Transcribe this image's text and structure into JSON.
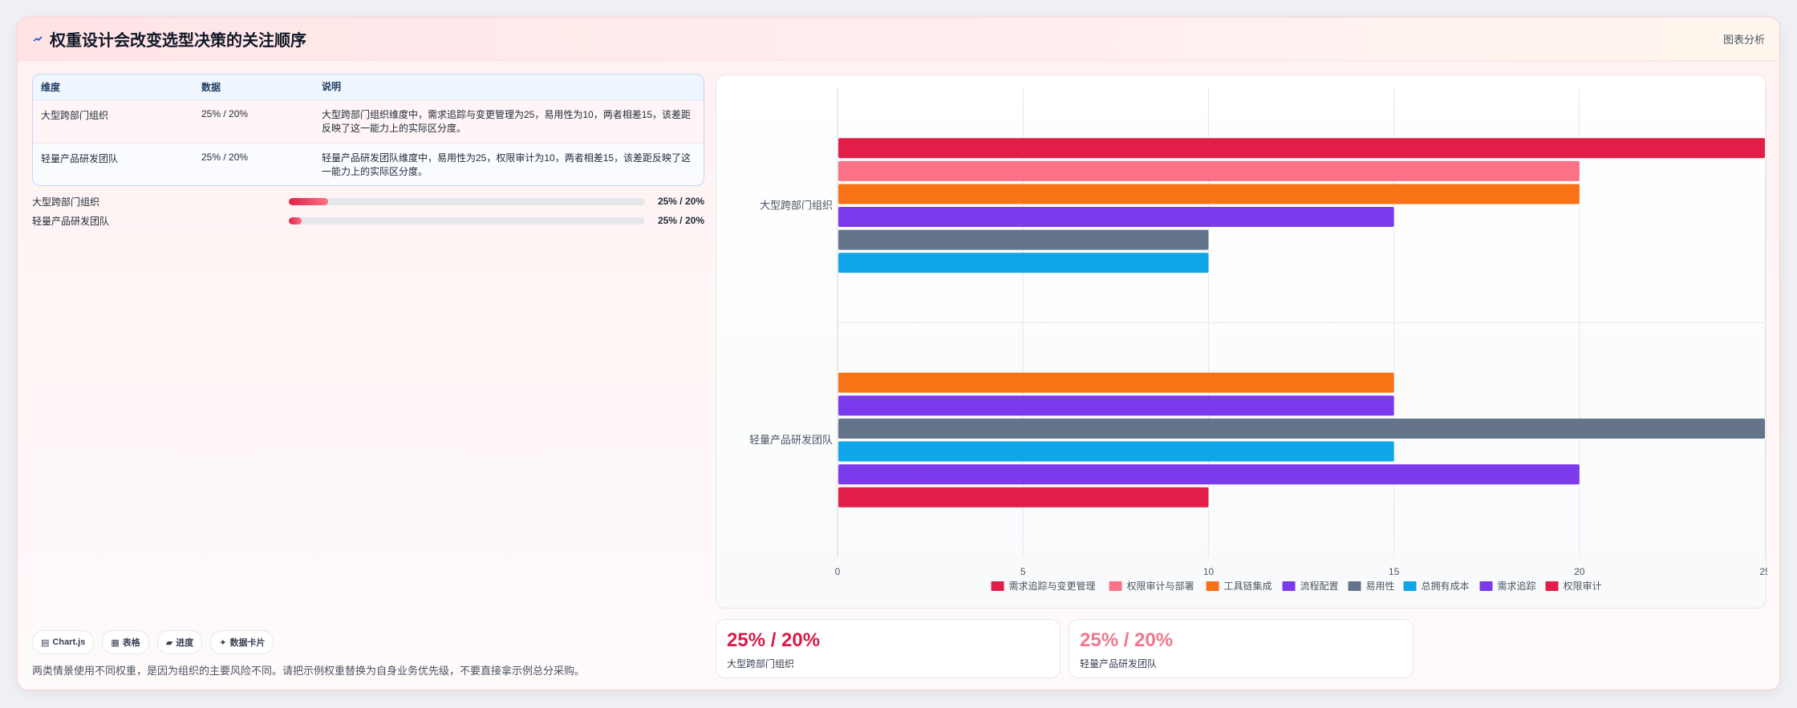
{
  "header": {
    "title": "权重设计会改变选型决策的关注顺序",
    "right_label": "图表分析"
  },
  "table": {
    "headers": [
      "维度",
      "数据",
      "说明"
    ],
    "rows": [
      {
        "dimension": "大型跨部门组织",
        "data": "25% / 20%",
        "desc": "大型跨部门组织维度中，需求追踪与变更管理为25，易用性为10，两者相差15，该差距反映了这一能力上的实际区分度。"
      },
      {
        "dimension": "轻量产品研发团队",
        "data": "25% / 20%",
        "desc": "轻量产品研发团队维度中，易用性为25，权限审计为10，两者相差15，该差距反映了这一能力上的实际区分度。"
      }
    ]
  },
  "progress": [
    {
      "label": "大型跨部门组织",
      "value": "25% / 20%",
      "fill": 0.11
    },
    {
      "label": "轻量产品研发团队",
      "value": "25% / 20%",
      "fill": 0.035
    }
  ],
  "tags": [
    {
      "icon": "chart-icon",
      "glyph": "▤",
      "label": "Chart.js"
    },
    {
      "icon": "table-icon",
      "glyph": "▦",
      "label": "表格"
    },
    {
      "icon": "folder-icon",
      "glyph": "▰",
      "label": "进度"
    },
    {
      "icon": "sparkle-icon",
      "glyph": "✦",
      "label": "数据卡片"
    }
  ],
  "note": "两类情景使用不同权重，是因为组织的主要风险不同。请把示例权重替换为自身业务优先级，不要直接拿示例总分采购。",
  "stats": [
    {
      "value": "25% / 20%",
      "label": "大型跨部门组织",
      "color": "#d91a46"
    },
    {
      "value": "25% / 20%",
      "label": "轻量产品研发团队",
      "color": "#f2778d"
    }
  ],
  "chart_data": {
    "type": "bar",
    "orientation": "horizontal",
    "categories": [
      "大型跨部门组织",
      "轻量产品研发团队"
    ],
    "xlim": [
      0,
      25
    ],
    "xticks": [
      0,
      5,
      10,
      15,
      20,
      25
    ],
    "grid": true,
    "legend_position": "bottom",
    "series": [
      {
        "name": "需求追踪与变更管理",
        "color": "#e11d48",
        "values": [
          25,
          null
        ]
      },
      {
        "name": "权限审计与部署",
        "color": "#fb7185",
        "values": [
          20,
          null
        ]
      },
      {
        "name": "工具链集成",
        "color": "#f97316",
        "values": [
          20,
          15
        ]
      },
      {
        "name": "流程配置",
        "color": "#7c3aed",
        "values": [
          15,
          15
        ]
      },
      {
        "name": "易用性",
        "color": "#64748b",
        "values": [
          10,
          25
        ]
      },
      {
        "name": "总拥有成本",
        "color": "#0ea5e9",
        "values": [
          10,
          15
        ]
      },
      {
        "name": "需求追踪",
        "color": "#7c3aed",
        "values": [
          null,
          20
        ]
      },
      {
        "name": "权限审计",
        "color": "#e11d48",
        "values": [
          null,
          10
        ]
      }
    ]
  }
}
